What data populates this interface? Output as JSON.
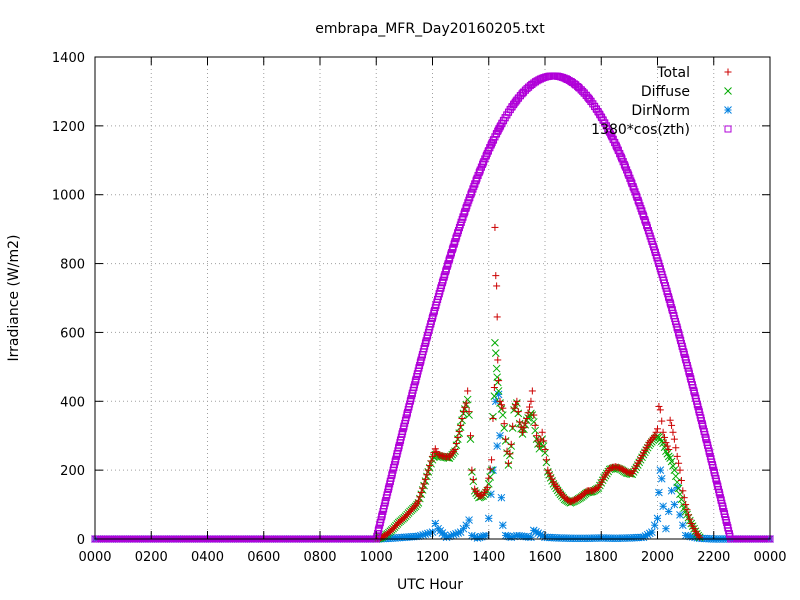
{
  "chart_data": {
    "type": "scatter",
    "title": "embrapa_MFR_Day20160205.txt",
    "xlabel": "UTC Hour",
    "ylabel": "Irradiance (W/m2)",
    "xlim": [
      0,
      24
    ],
    "ylim": [
      0,
      1400
    ],
    "x_ticks": [
      {
        "value": 0,
        "label": "0000"
      },
      {
        "value": 2,
        "label": "0200"
      },
      {
        "value": 4,
        "label": "0400"
      },
      {
        "value": 6,
        "label": "0600"
      },
      {
        "value": 8,
        "label": "0800"
      },
      {
        "value": 10,
        "label": "1000"
      },
      {
        "value": 12,
        "label": "1200"
      },
      {
        "value": 14,
        "label": "1400"
      },
      {
        "value": 16,
        "label": "1600"
      },
      {
        "value": 18,
        "label": "1800"
      },
      {
        "value": 20,
        "label": "2000"
      },
      {
        "value": 22,
        "label": "2200"
      },
      {
        "value": 24,
        "label": "0000"
      }
    ],
    "y_ticks": [
      0,
      200,
      400,
      600,
      800,
      1000,
      1200,
      1400
    ],
    "grid": true,
    "legend_position": "top-right",
    "series": [
      {
        "name": "Total",
        "color": "#cc0000",
        "marker": "plus",
        "points": [
          [
            10.0,
            0
          ],
          [
            10.2,
            5
          ],
          [
            10.4,
            15
          ],
          [
            10.6,
            30
          ],
          [
            10.8,
            48
          ],
          [
            11.0,
            62
          ],
          [
            11.2,
            80
          ],
          [
            11.4,
            98
          ],
          [
            11.5,
            110
          ],
          [
            11.7,
            160
          ],
          [
            11.85,
            200
          ],
          [
            12.0,
            240
          ],
          [
            12.1,
            262
          ],
          [
            12.2,
            245
          ],
          [
            12.4,
            240
          ],
          [
            12.6,
            238
          ],
          [
            12.8,
            260
          ],
          [
            13.0,
            330
          ],
          [
            13.1,
            370
          ],
          [
            13.2,
            395
          ],
          [
            13.25,
            430
          ],
          [
            13.3,
            370
          ],
          [
            13.35,
            300
          ],
          [
            13.4,
            200
          ],
          [
            13.5,
            145
          ],
          [
            13.65,
            125
          ],
          [
            13.8,
            128
          ],
          [
            13.95,
            150
          ],
          [
            14.1,
            230
          ],
          [
            14.15,
            350
          ],
          [
            14.2,
            440
          ],
          [
            14.22,
            905
          ],
          [
            14.25,
            765
          ],
          [
            14.28,
            735
          ],
          [
            14.3,
            645
          ],
          [
            14.32,
            520
          ],
          [
            14.35,
            460
          ],
          [
            14.4,
            400
          ],
          [
            14.5,
            380
          ],
          [
            14.6,
            290
          ],
          [
            14.7,
            220
          ],
          [
            14.8,
            275
          ],
          [
            14.9,
            380
          ],
          [
            15.0,
            400
          ],
          [
            15.1,
            340
          ],
          [
            15.2,
            310
          ],
          [
            15.35,
            350
          ],
          [
            15.5,
            400
          ],
          [
            15.55,
            430
          ],
          [
            15.6,
            360
          ],
          [
            15.7,
            300
          ],
          [
            15.8,
            270
          ],
          [
            15.9,
            310
          ],
          [
            16.0,
            260
          ],
          [
            16.1,
            200
          ],
          [
            16.3,
            165
          ],
          [
            16.5,
            140
          ],
          [
            16.7,
            120
          ],
          [
            16.9,
            108
          ],
          [
            17.1,
            115
          ],
          [
            17.3,
            125
          ],
          [
            17.5,
            140
          ],
          [
            17.7,
            140
          ],
          [
            17.9,
            150
          ],
          [
            18.1,
            180
          ],
          [
            18.3,
            205
          ],
          [
            18.5,
            210
          ],
          [
            18.7,
            205
          ],
          [
            18.9,
            195
          ],
          [
            19.1,
            190
          ],
          [
            19.3,
            220
          ],
          [
            19.5,
            250
          ],
          [
            19.7,
            280
          ],
          [
            19.9,
            300
          ],
          [
            20.0,
            320
          ],
          [
            20.05,
            385
          ],
          [
            20.1,
            375
          ],
          [
            20.2,
            310
          ],
          [
            20.3,
            280
          ],
          [
            20.4,
            260
          ],
          [
            20.45,
            345
          ],
          [
            20.5,
            330
          ],
          [
            20.6,
            290
          ],
          [
            20.7,
            240
          ],
          [
            20.8,
            200
          ],
          [
            20.9,
            140
          ],
          [
            21.0,
            100
          ],
          [
            21.1,
            70
          ],
          [
            21.2,
            45
          ],
          [
            21.3,
            30
          ],
          [
            21.4,
            15
          ],
          [
            21.5,
            5
          ]
        ]
      },
      {
        "name": "Diffuse",
        "color": "#00aa00",
        "marker": "cross",
        "points": [
          [
            10.0,
            0
          ],
          [
            10.2,
            5
          ],
          [
            10.4,
            15
          ],
          [
            10.6,
            30
          ],
          [
            10.8,
            48
          ],
          [
            11.0,
            62
          ],
          [
            11.2,
            80
          ],
          [
            11.4,
            95
          ],
          [
            11.5,
            105
          ],
          [
            11.7,
            155
          ],
          [
            11.85,
            195
          ],
          [
            12.0,
            230
          ],
          [
            12.1,
            245
          ],
          [
            12.2,
            242
          ],
          [
            12.4,
            238
          ],
          [
            12.6,
            235
          ],
          [
            12.8,
            255
          ],
          [
            13.0,
            325
          ],
          [
            13.1,
            365
          ],
          [
            13.2,
            390
          ],
          [
            13.25,
            405
          ],
          [
            13.3,
            360
          ],
          [
            13.35,
            290
          ],
          [
            13.4,
            195
          ],
          [
            13.5,
            140
          ],
          [
            13.65,
            120
          ],
          [
            13.8,
            125
          ],
          [
            13.95,
            140
          ],
          [
            14.1,
            200
          ],
          [
            14.15,
            355
          ],
          [
            14.2,
            415
          ],
          [
            14.22,
            570
          ],
          [
            14.25,
            540
          ],
          [
            14.28,
            495
          ],
          [
            14.3,
            470
          ],
          [
            14.32,
            455
          ],
          [
            14.35,
            430
          ],
          [
            14.4,
            395
          ],
          [
            14.5,
            360
          ],
          [
            14.6,
            285
          ],
          [
            14.7,
            215
          ],
          [
            14.8,
            270
          ],
          [
            14.9,
            375
          ],
          [
            15.0,
            395
          ],
          [
            15.1,
            335
          ],
          [
            15.2,
            305
          ],
          [
            15.35,
            345
          ],
          [
            15.5,
            365
          ],
          [
            15.55,
            360
          ],
          [
            15.6,
            340
          ],
          [
            15.7,
            290
          ],
          [
            15.8,
            262
          ],
          [
            15.9,
            290
          ],
          [
            16.0,
            250
          ],
          [
            16.1,
            195
          ],
          [
            16.3,
            160
          ],
          [
            16.5,
            135
          ],
          [
            16.7,
            115
          ],
          [
            16.9,
            105
          ],
          [
            17.1,
            112
          ],
          [
            17.3,
            122
          ],
          [
            17.5,
            135
          ],
          [
            17.7,
            138
          ],
          [
            17.9,
            148
          ],
          [
            18.1,
            178
          ],
          [
            18.3,
            202
          ],
          [
            18.5,
            208
          ],
          [
            18.7,
            202
          ],
          [
            18.9,
            192
          ],
          [
            19.1,
            188
          ],
          [
            19.3,
            215
          ],
          [
            19.5,
            245
          ],
          [
            19.7,
            272
          ],
          [
            19.9,
            292
          ],
          [
            20.0,
            298
          ],
          [
            20.05,
            296
          ],
          [
            20.1,
            290
          ],
          [
            20.2,
            278
          ],
          [
            20.3,
            255
          ],
          [
            20.4,
            240
          ],
          [
            20.45,
            235
          ],
          [
            20.5,
            225
          ],
          [
            20.6,
            200
          ],
          [
            20.7,
            165
          ],
          [
            20.8,
            130
          ],
          [
            20.9,
            100
          ],
          [
            21.0,
            80
          ],
          [
            21.1,
            62
          ],
          [
            21.2,
            45
          ],
          [
            21.3,
            30
          ],
          [
            21.4,
            15
          ],
          [
            21.5,
            5
          ]
        ]
      },
      {
        "name": "DirNorm",
        "color": "#0080e0",
        "marker": "star",
        "points": [
          [
            0.0,
            0
          ],
          [
            1.0,
            0
          ],
          [
            2.0,
            0
          ],
          [
            3.0,
            0
          ],
          [
            4.0,
            0
          ],
          [
            5.0,
            0
          ],
          [
            6.0,
            0
          ],
          [
            7.0,
            0
          ],
          [
            8.0,
            0
          ],
          [
            9.0,
            0
          ],
          [
            10.0,
            0
          ],
          [
            10.5,
            2
          ],
          [
            11.0,
            5
          ],
          [
            11.5,
            8
          ],
          [
            12.0,
            20
          ],
          [
            12.1,
            45
          ],
          [
            12.2,
            30
          ],
          [
            12.5,
            5
          ],
          [
            13.0,
            20
          ],
          [
            13.2,
            40
          ],
          [
            13.3,
            55
          ],
          [
            13.4,
            10
          ],
          [
            13.6,
            3
          ],
          [
            13.9,
            10
          ],
          [
            14.0,
            60
          ],
          [
            14.15,
            200
          ],
          [
            14.25,
            400
          ],
          [
            14.3,
            270
          ],
          [
            14.35,
            420
          ],
          [
            14.4,
            300
          ],
          [
            14.45,
            120
          ],
          [
            14.5,
            40
          ],
          [
            14.6,
            10
          ],
          [
            14.8,
            5
          ],
          [
            15.0,
            10
          ],
          [
            15.5,
            5
          ],
          [
            15.6,
            25
          ],
          [
            16.0,
            5
          ],
          [
            16.5,
            3
          ],
          [
            17.0,
            2
          ],
          [
            17.5,
            2
          ],
          [
            18.0,
            3
          ],
          [
            18.5,
            2
          ],
          [
            19.0,
            3
          ],
          [
            19.5,
            5
          ],
          [
            19.8,
            20
          ],
          [
            19.9,
            40
          ],
          [
            20.0,
            60
          ],
          [
            20.05,
            135
          ],
          [
            20.1,
            200
          ],
          [
            20.15,
            175
          ],
          [
            20.2,
            95
          ],
          [
            20.3,
            30
          ],
          [
            20.4,
            80
          ],
          [
            20.5,
            140
          ],
          [
            20.6,
            100
          ],
          [
            20.7,
            150
          ],
          [
            20.8,
            70
          ],
          [
            20.9,
            40
          ],
          [
            21.0,
            10
          ],
          [
            21.5,
            2
          ],
          [
            22.0,
            0
          ],
          [
            22.5,
            0
          ],
          [
            23.0,
            0
          ],
          [
            24.0,
            0
          ]
        ]
      },
      {
        "name": "1380*cos(zth)",
        "color": "#b000d8",
        "marker": "square",
        "peak_value": 1345,
        "peak_x": 16.3,
        "start_x": 10.0,
        "end_x": 22.6
      }
    ]
  }
}
